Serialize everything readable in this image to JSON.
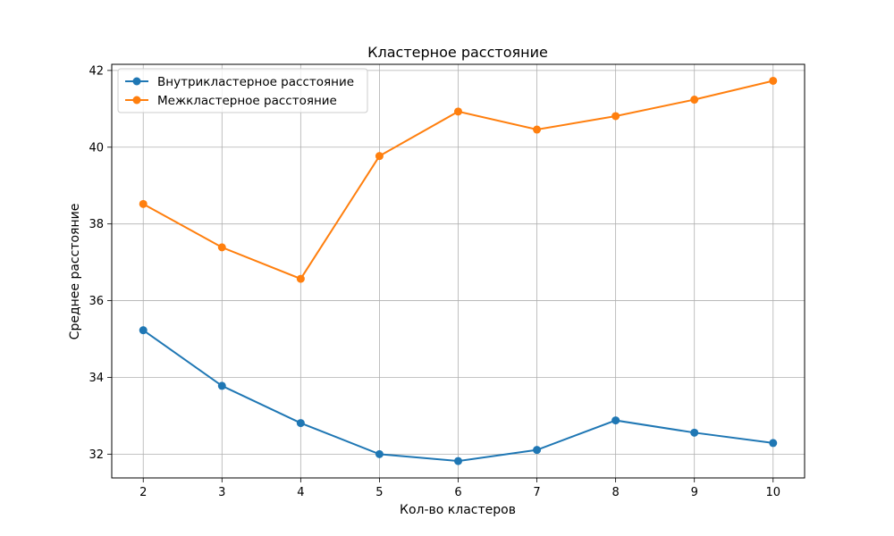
{
  "chart_data": {
    "type": "line",
    "title": "Кластерное расстояние",
    "xlabel": "Кол-во кластеров",
    "ylabel": "Среднее расстояние",
    "x": [
      2,
      3,
      4,
      5,
      6,
      7,
      8,
      9,
      10
    ],
    "xticks": [
      "2",
      "3",
      "4",
      "5",
      "6",
      "7",
      "8",
      "9",
      "10"
    ],
    "yticks": [
      32,
      34,
      36,
      38,
      40,
      42
    ],
    "ytick_labels": [
      "32",
      "34",
      "36",
      "38",
      "40",
      "42"
    ],
    "xlim": [
      1.6,
      10.4
    ],
    "ylim": [
      31.38,
      42.16
    ],
    "grid": true,
    "legend_position": "top-left",
    "series": [
      {
        "name": "Внутрикластерное расстояние",
        "color": "#1f77b4",
        "marker": "circle",
        "values": [
          35.23,
          33.78,
          32.81,
          32.0,
          31.82,
          32.11,
          32.88,
          32.56,
          32.29
        ]
      },
      {
        "name": "Межкластерное расстояние",
        "color": "#ff7f0e",
        "marker": "circle",
        "values": [
          38.52,
          37.39,
          36.57,
          39.77,
          40.93,
          40.46,
          40.81,
          41.24,
          41.73
        ]
      }
    ]
  }
}
